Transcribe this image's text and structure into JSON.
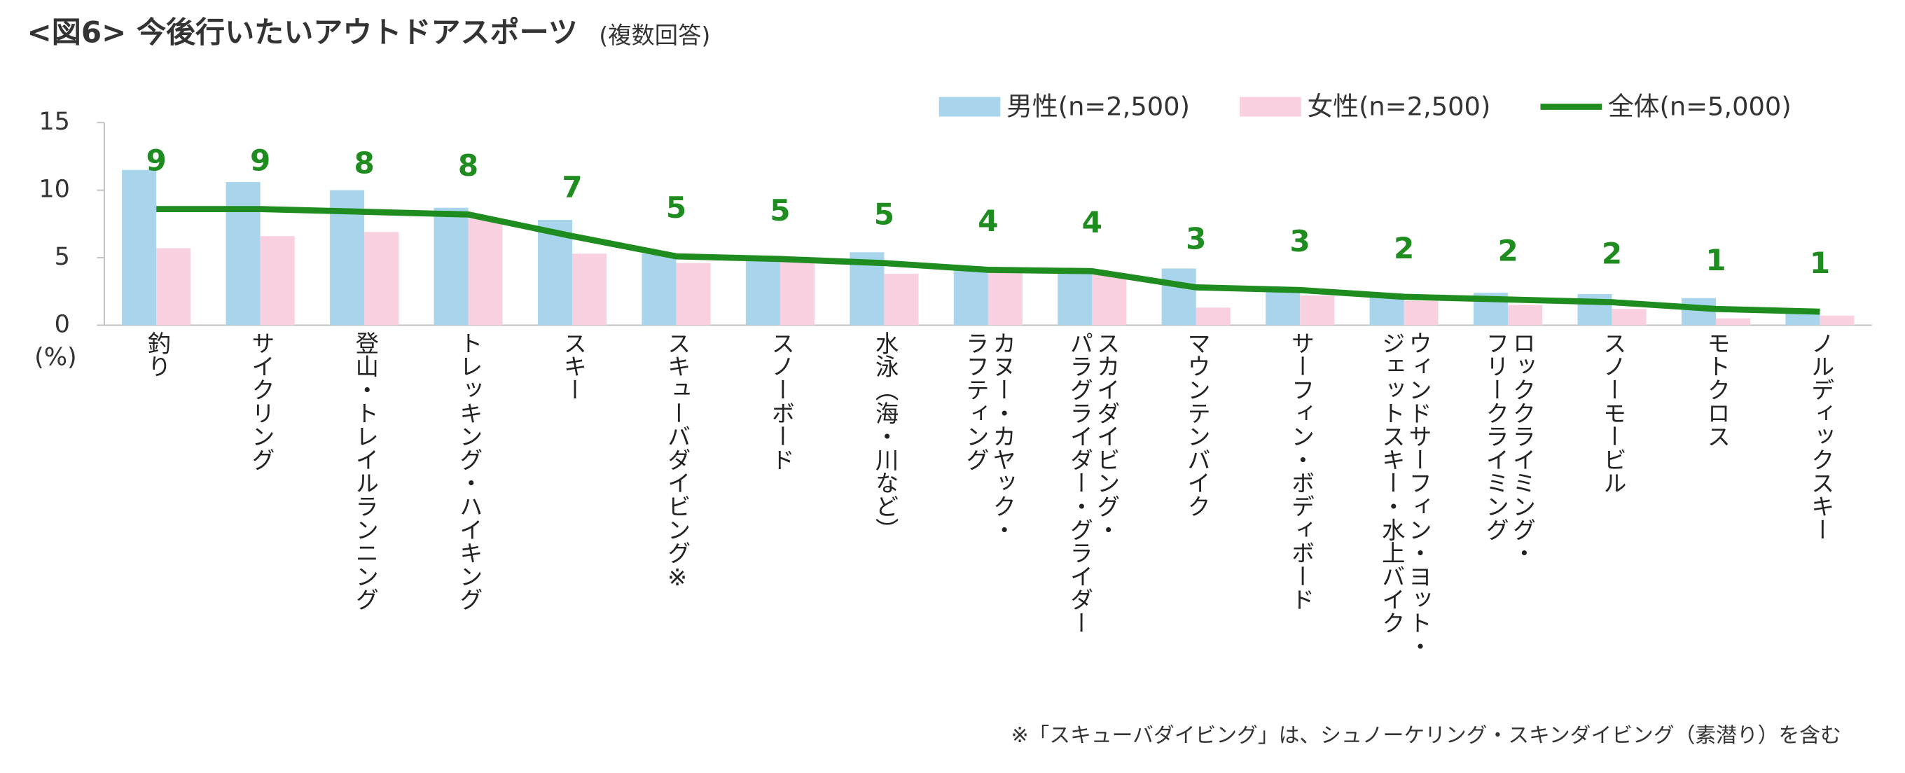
{
  "chart_data": {
    "type": "bar",
    "title": "<図6> 今後行いたいアウトドアスポーツ",
    "subtitle": "(複数回答)",
    "y_unit": "(%)",
    "categories": [
      "釣り",
      "サイクリング",
      "登山・トレイルランニング",
      "トレッキング・ハイキング",
      "スキー",
      "スキューバダイビング※",
      "スノーボード",
      "水泳（海・川など）",
      "カヌー・カヤック・\nラフティング",
      "スカイダイビング・\nパラグライダー・グライダー",
      "マウンテンバイク",
      "サーフィン・ボディボード",
      "ウィンドサーフィン・ヨット・\nジェットスキー・水上バイク",
      "ロッククライミング・\nフリークライミング",
      "スノーモービル",
      "モトクロス",
      "ノルディックスキー"
    ],
    "series": [
      {
        "name": "男性(n=2,500)",
        "type": "bar",
        "color": "#a9d5ec",
        "values": [
          11.5,
          10.6,
          10.0,
          8.7,
          7.8,
          5.3,
          5.0,
          5.4,
          4.1,
          4.2,
          4.2,
          2.8,
          2.3,
          2.4,
          2.3,
          2.0,
          1.0
        ]
      },
      {
        "name": "女性(n=2,500)",
        "type": "bar",
        "color": "#f9d0e0",
        "values": [
          5.7,
          6.6,
          6.9,
          7.9,
          5.3,
          4.6,
          4.8,
          3.8,
          4.0,
          3.8,
          1.3,
          2.2,
          1.8,
          1.5,
          1.2,
          0.5,
          0.7
        ]
      },
      {
        "name": "全体(n=5,000)",
        "type": "line",
        "color": "#1e8c1e",
        "values": [
          8.6,
          8.6,
          8.4,
          8.2,
          6.6,
          5.1,
          4.9,
          4.6,
          4.1,
          4.0,
          2.8,
          2.6,
          2.1,
          1.9,
          1.7,
          1.2,
          1.0
        ],
        "value_labels": [
          "9",
          "9",
          "8",
          "8",
          "7",
          "5",
          "5",
          "5",
          "4",
          "4",
          "3",
          "3",
          "2",
          "2",
          "2",
          "1",
          "1"
        ]
      }
    ],
    "ylim": [
      0,
      15
    ],
    "yticks": [
      0,
      5,
      10,
      15
    ],
    "note": "※「スキューバダイビング」は、シュノーケリング・スキンダイビング（素潜り）を含む"
  }
}
